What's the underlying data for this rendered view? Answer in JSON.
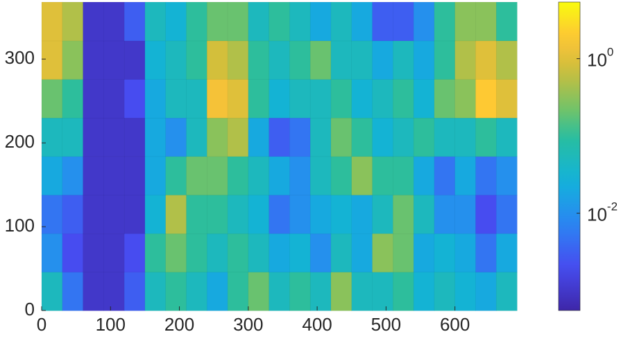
{
  "chart_data": {
    "type": "heatmap",
    "xlim": [
      0,
      690
    ],
    "ylim": [
      0,
      368
    ],
    "xticks": [
      0,
      100,
      200,
      300,
      400,
      500,
      600
    ],
    "yticks": [
      0,
      100,
      200,
      300
    ],
    "xbins": [
      0,
      30,
      60,
      90,
      120,
      150,
      180,
      210,
      240,
      270,
      300,
      330,
      360,
      390,
      420,
      450,
      480,
      510,
      540,
      570,
      600,
      630,
      660,
      690
    ],
    "ybins": [
      0,
      46,
      92,
      138,
      184,
      230,
      276,
      322,
      368
    ],
    "values": [
      [
        0.05,
        0.005,
        0.001,
        0.001,
        0.003,
        0.05,
        0.1,
        0.05,
        0.02,
        0.1,
        0.2,
        0.05,
        0.1,
        0.05,
        0.3,
        0.05,
        0.05,
        0.1,
        0.03,
        0.05,
        0.03,
        0.02,
        0.05
      ],
      [
        0.01,
        0.002,
        0.001,
        0.001,
        0.002,
        0.1,
        0.2,
        0.1,
        0.05,
        0.1,
        0.05,
        0.02,
        0.03,
        0.01,
        0.05,
        0.02,
        0.3,
        0.2,
        0.02,
        0.03,
        0.02,
        0.005,
        0.02
      ],
      [
        0.005,
        0.003,
        0.001,
        0.001,
        0.001,
        0.03,
        0.5,
        0.1,
        0.1,
        0.05,
        0.03,
        0.005,
        0.01,
        0.02,
        0.03,
        0.02,
        0.05,
        0.2,
        0.05,
        0.01,
        0.01,
        0.002,
        0.005
      ],
      [
        0.02,
        0.01,
        0.001,
        0.001,
        0.001,
        0.02,
        0.1,
        0.2,
        0.2,
        0.1,
        0.05,
        0.02,
        0.01,
        0.05,
        0.1,
        0.3,
        0.1,
        0.1,
        0.02,
        0.005,
        0.02,
        0.005,
        0.01
      ],
      [
        0.05,
        0.05,
        0.001,
        0.001,
        0.001,
        0.02,
        0.01,
        0.05,
        0.3,
        0.5,
        0.02,
        0.003,
        0.005,
        0.05,
        0.2,
        0.1,
        0.03,
        0.05,
        0.1,
        0.05,
        0.05,
        0.1,
        0.05
      ],
      [
        0.2,
        0.1,
        0.001,
        0.001,
        0.002,
        0.02,
        0.05,
        0.05,
        1.5,
        1,
        0.1,
        0.03,
        0.05,
        0.05,
        0.1,
        0.03,
        0.05,
        0.1,
        0.03,
        0.2,
        0.3,
        2,
        1
      ],
      [
        1,
        0.3,
        0.001,
        0.001,
        0.001,
        0.03,
        0.05,
        0.1,
        0.8,
        0.5,
        0.1,
        0.05,
        0.1,
        0.2,
        0.05,
        0.05,
        0.02,
        0.05,
        0.02,
        0.1,
        0.5,
        1,
        0.5
      ],
      [
        1,
        0.5,
        0.001,
        0.001,
        0.003,
        0.05,
        0.03,
        0.1,
        0.2,
        0.2,
        0.05,
        0.1,
        0.05,
        0.02,
        0.05,
        0.02,
        0.003,
        0.003,
        0.01,
        0.1,
        0.3,
        0.3,
        0.1
      ]
    ],
    "colormap": "parula",
    "colorbar": {
      "scale": "log",
      "clim": [
        0.00055,
        5.4
      ],
      "ticks": [
        {
          "value": 0.01,
          "label": "10",
          "exponent": "-2"
        },
        {
          "value": 1,
          "label": "10",
          "exponent": "0"
        }
      ]
    }
  }
}
